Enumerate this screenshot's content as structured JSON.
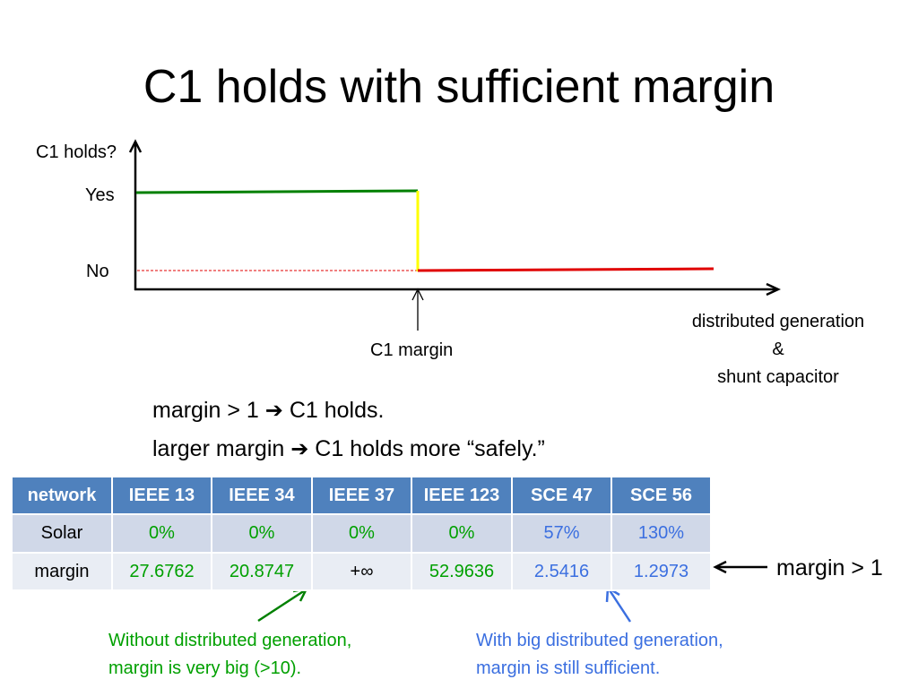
{
  "slide": {
    "title": "C1 holds with sufficient margin"
  },
  "diagram": {
    "y_label": "C1 holds?",
    "y_yes": "Yes",
    "y_no": "No",
    "x_label_lines": [
      "distributed generation",
      "&",
      "shunt capacitor"
    ],
    "marker_label": "C1 margin",
    "colors": {
      "yes_line": "#008000",
      "no_line": "#e00000",
      "step": "#ffff00",
      "guide": "#e00000",
      "axis": "#000000"
    }
  },
  "statements": [
    {
      "left": "margin > 1",
      "arrow": "➔",
      "right": "C1 holds."
    },
    {
      "left": "larger margin",
      "arrow": "➔",
      "right": "C1 holds more “safely.”"
    }
  ],
  "table": {
    "header_bg": "#4f81bd",
    "columns": [
      "network",
      "IEEE 13",
      "IEEE 34",
      "IEEE 37",
      "IEEE 123",
      "SCE 47",
      "SCE 56"
    ],
    "rows": [
      {
        "label": "Solar",
        "cells": [
          "0%",
          "0%",
          "0%",
          "0%",
          "57%",
          "130%"
        ]
      },
      {
        "label": "margin",
        "cells": [
          "27.6762",
          "20.8747",
          "+∞",
          "52.9636",
          "2.5416",
          "1.2973"
        ]
      }
    ],
    "cell_colors": [
      "green",
      "green",
      "black",
      "green",
      "blue",
      "blue"
    ]
  },
  "notes": {
    "green_lines": [
      "Without distributed generation,",
      "margin is very big (>10)."
    ],
    "blue_lines": [
      "With big distributed generation,",
      "margin is still sufficient."
    ],
    "green_color": "#00a000",
    "blue_color": "#3b6fe0"
  },
  "callout": "margin > 1"
}
